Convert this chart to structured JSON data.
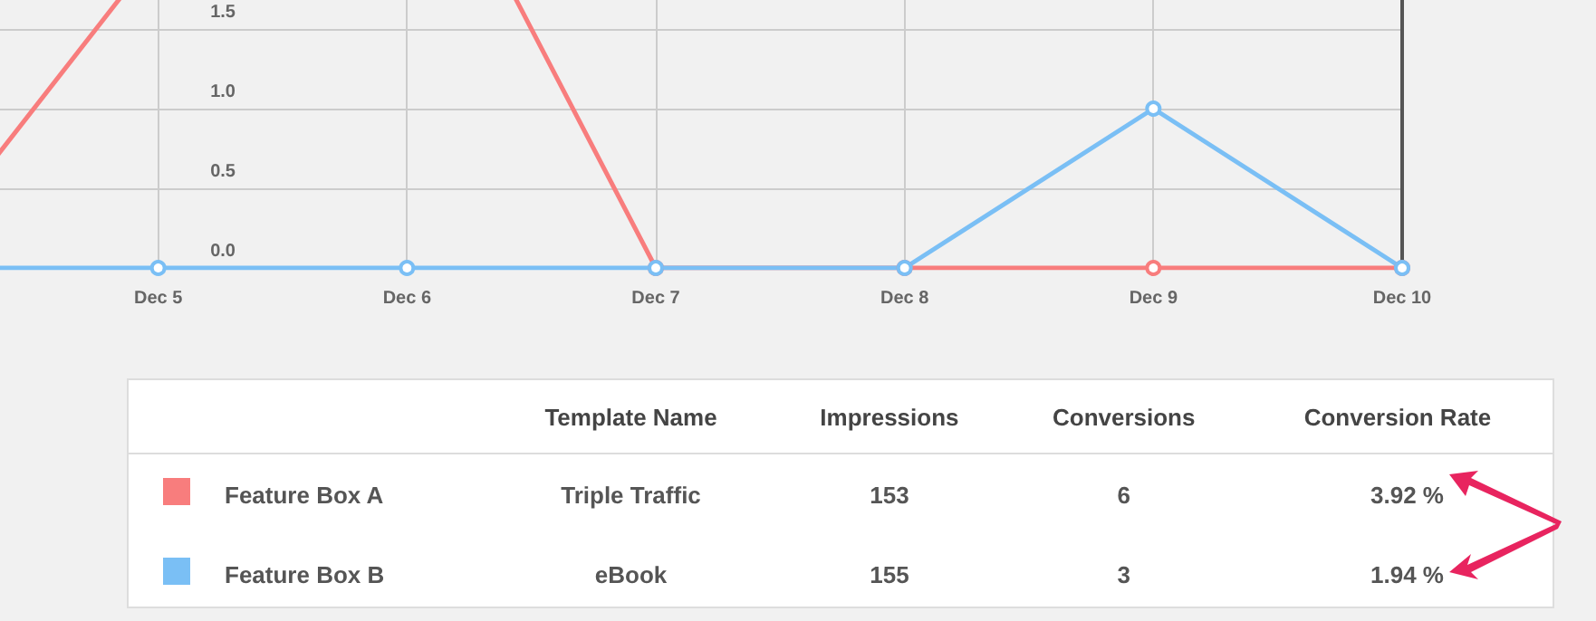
{
  "chart_data": [
    {
      "type": "line",
      "categories": [
        null,
        "Dec 5",
        "Dec 6",
        "Dec 7",
        "Dec 8",
        "Dec 9",
        "Dec 10"
      ],
      "series": [
        {
          "color": "#f87d7d",
          "values": [
            0,
            2,
            3,
            0,
            0,
            0,
            0
          ]
        },
        {
          "color": "#7abff5",
          "values": [
            0,
            0,
            0,
            0,
            0,
            1,
            0
          ]
        }
      ],
      "ylim": [
        0,
        3
      ],
      "yticks": [
        {
          "value": 0,
          "label": "0.0"
        },
        0.5,
        {
          "value": 1,
          "label": "1.0"
        },
        1.5
      ],
      "grid": true,
      "marker": "circle",
      "line_style": "solid"
    },
    {
      "type": "other",
      "categories": [
        "Template Name",
        "Impressions",
        "Conversions",
        "Conversion Rate"
      ],
      "y_categories": [
        "Feature Box A",
        "Feature Box B"
      ],
      "cell_labels": [
        [
          "Triple Traffic",
          "153",
          "6",
          "3.92 %"
        ],
        [
          "eBook",
          "155",
          "3",
          "1.94 %"
        ]
      ]
    }
  ]
}
